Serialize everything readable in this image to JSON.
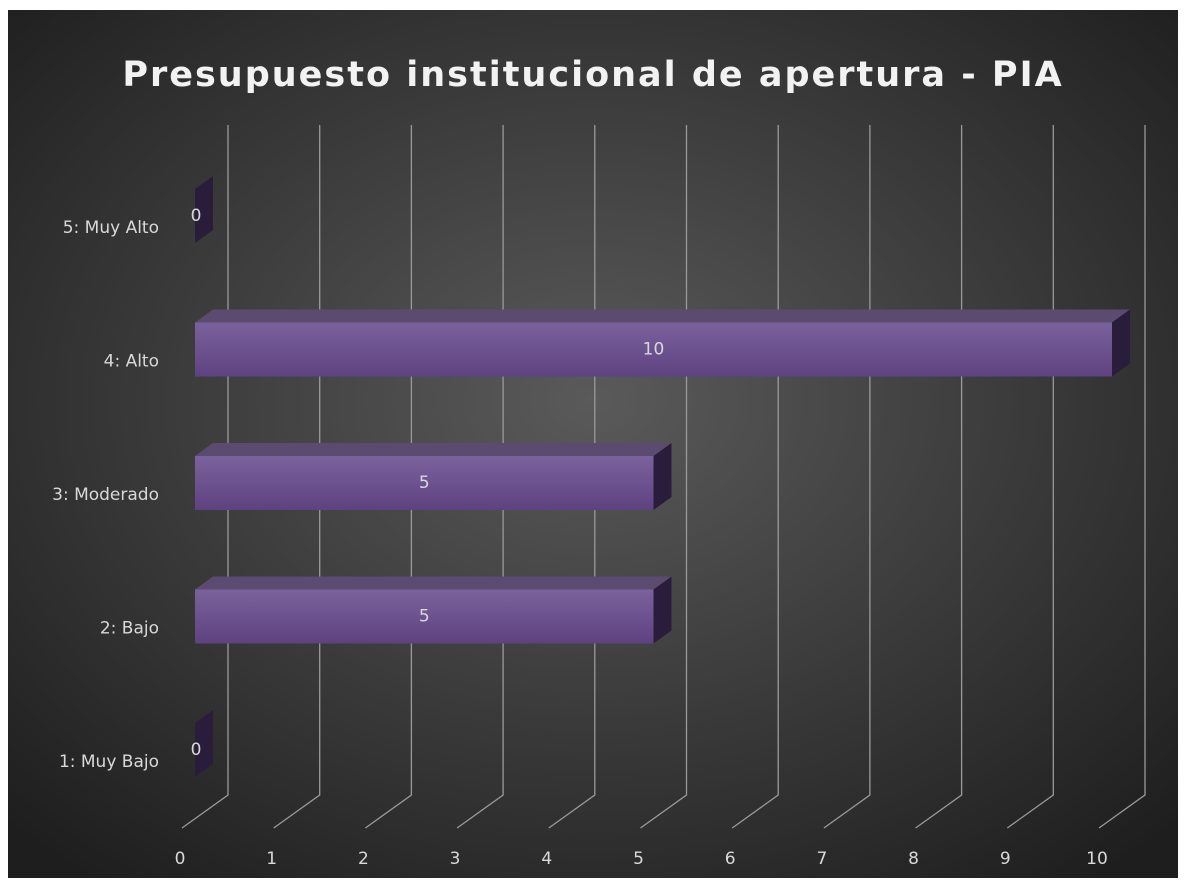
{
  "chart_data": {
    "type": "bar",
    "orientation": "horizontal",
    "title": "Presupuesto institucional de apertura - PIA",
    "categories": [
      "1: Muy Bajo",
      "2: Bajo",
      "3: Moderado",
      "4: Alto",
      "5: Muy Alto"
    ],
    "values": [
      0,
      5,
      5,
      10,
      0
    ],
    "color": "#684a8a",
    "xlim": [
      0,
      10
    ],
    "xticks": [
      0,
      1,
      2,
      3,
      4,
      5,
      6,
      7,
      8,
      9,
      10
    ],
    "grid": true
  }
}
